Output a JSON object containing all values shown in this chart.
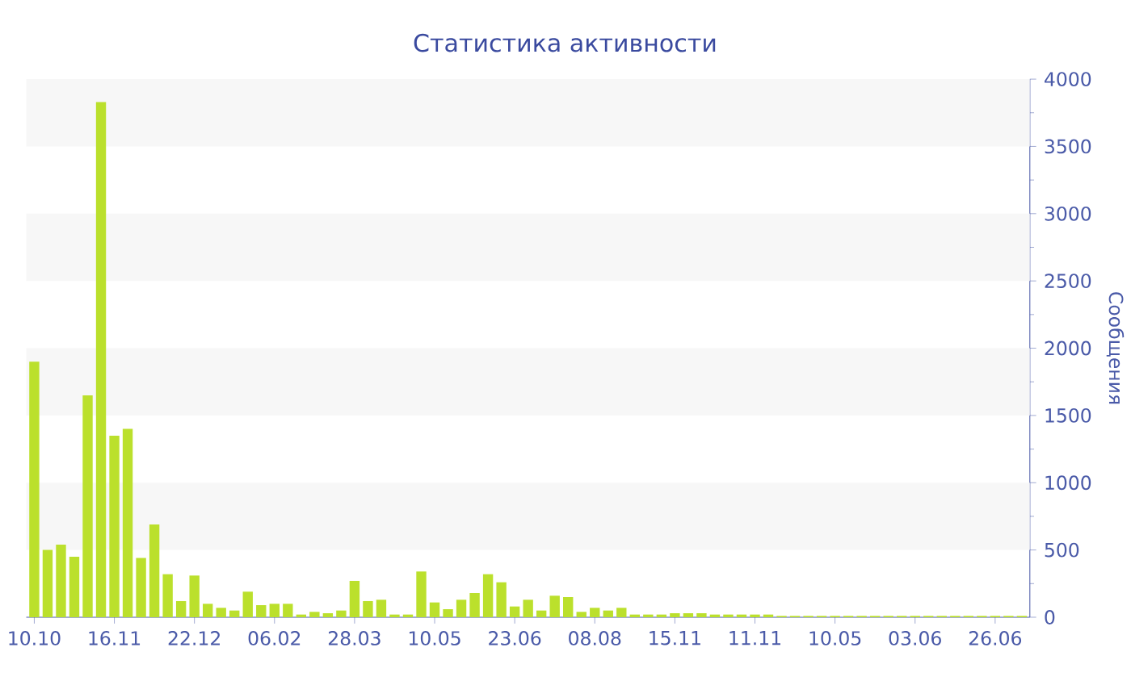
{
  "chart_data": {
    "type": "bar",
    "title": "Статистика активности",
    "ylabel": "Сообщения",
    "categories": [
      "10.10",
      null,
      null,
      null,
      null,
      null,
      "16.11",
      null,
      null,
      null,
      null,
      null,
      "22.12",
      null,
      null,
      null,
      null,
      null,
      "06.02",
      null,
      null,
      null,
      null,
      null,
      "28.03",
      null,
      null,
      null,
      null,
      null,
      "10.05",
      null,
      null,
      null,
      null,
      null,
      "23.06",
      null,
      null,
      null,
      null,
      null,
      "08.08",
      null,
      null,
      null,
      null,
      null,
      "15.11",
      null,
      null,
      null,
      null,
      null,
      "11.11",
      null,
      null,
      null,
      null,
      null,
      "10.05",
      null,
      null,
      null,
      null,
      null,
      "03.06",
      null,
      null,
      null,
      null,
      null,
      "26.06",
      null,
      null
    ],
    "values": [
      1900,
      500,
      540,
      450,
      1650,
      3830,
      1350,
      1400,
      440,
      690,
      320,
      120,
      310,
      100,
      70,
      50,
      190,
      90,
      100,
      100,
      20,
      40,
      30,
      50,
      270,
      120,
      130,
      20,
      20,
      340,
      110,
      60,
      130,
      180,
      320,
      260,
      80,
      130,
      50,
      160,
      150,
      40,
      70,
      50,
      70,
      20,
      20,
      20,
      30,
      30,
      30,
      20,
      20,
      20,
      20,
      20,
      10,
      10,
      10,
      10,
      10,
      10,
      10,
      10,
      10,
      10,
      10,
      10,
      10,
      10,
      10,
      10,
      10,
      10,
      10
    ],
    "color": "#bbe02c",
    "ylim": [
      0,
      4000
    ],
    "yticks": [
      0,
      500,
      1000,
      1500,
      2000,
      2500,
      3000,
      3500,
      4000
    ],
    "bands": [
      {
        "axis": "y",
        "from": 500,
        "to": 1000,
        "color": "#f7f7f7"
      },
      {
        "axis": "y",
        "from": 1500,
        "to": 2000,
        "color": "#f7f7f7"
      },
      {
        "axis": "y",
        "from": 2500,
        "to": 3000,
        "color": "#f7f7f7"
      },
      {
        "axis": "y",
        "from": 3500,
        "to": 4000,
        "color": "#f7f7f7"
      }
    ]
  }
}
